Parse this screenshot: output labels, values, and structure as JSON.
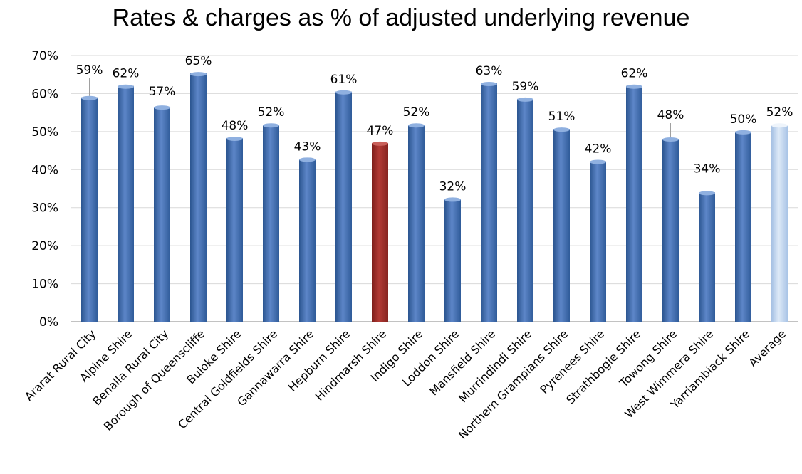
{
  "chart_data": {
    "type": "bar",
    "title": "Rates & charges as % of adjusted underlying revenue",
    "xlabel": "",
    "ylabel": "",
    "ylim": [
      0,
      70
    ],
    "ytick_step": 10,
    "ytick_suffix": "%",
    "grid": true,
    "legend": "none",
    "categories": [
      "Ararat Rural City",
      "Alpine Shire",
      "Benalla Rural City",
      "Borough of Queenscliffe",
      "Buloke Shire",
      "Central Goldfields Shire",
      "Gannawarra Shire",
      "Hepburn Shire",
      "Hindmarsh Shire",
      "Indigo Shire",
      "Loddon Shire",
      "Mansfield Shire",
      "Murrindindi Shire",
      "Northern Grampians Shire",
      "Pyrenees Shire",
      "Strathbogie Shire",
      "Towong Shire",
      "West Wimmera Shire",
      "Yarriambiack Shire",
      "Average"
    ],
    "values": [
      59,
      62,
      56.5,
      65.3,
      48.3,
      51.8,
      42.8,
      60.5,
      47,
      51.8,
      32.3,
      62.7,
      58.6,
      50.7,
      42.2,
      62,
      48.1,
      34,
      50,
      51.8
    ],
    "data_labels": [
      "59%",
      "62%",
      "57%",
      "65%",
      "48%",
      "52%",
      "43%",
      "61%",
      "47%",
      "52%",
      "32%",
      "63%",
      "59%",
      "51%",
      "42%",
      "62%",
      "48%",
      "34%",
      "50%",
      "52%"
    ],
    "bar_styles": [
      "blue",
      "blue",
      "blue",
      "blue",
      "blue",
      "blue",
      "blue",
      "blue",
      "highlight",
      "blue",
      "blue",
      "blue",
      "blue",
      "blue",
      "blue",
      "blue",
      "blue",
      "blue",
      "blue",
      "average"
    ],
    "colors": {
      "blue": "#4a73b6",
      "highlight": "#a8312c",
      "average": "#b9d0ec",
      "grid": "#d9d9d9",
      "axis": "#868686"
    }
  }
}
